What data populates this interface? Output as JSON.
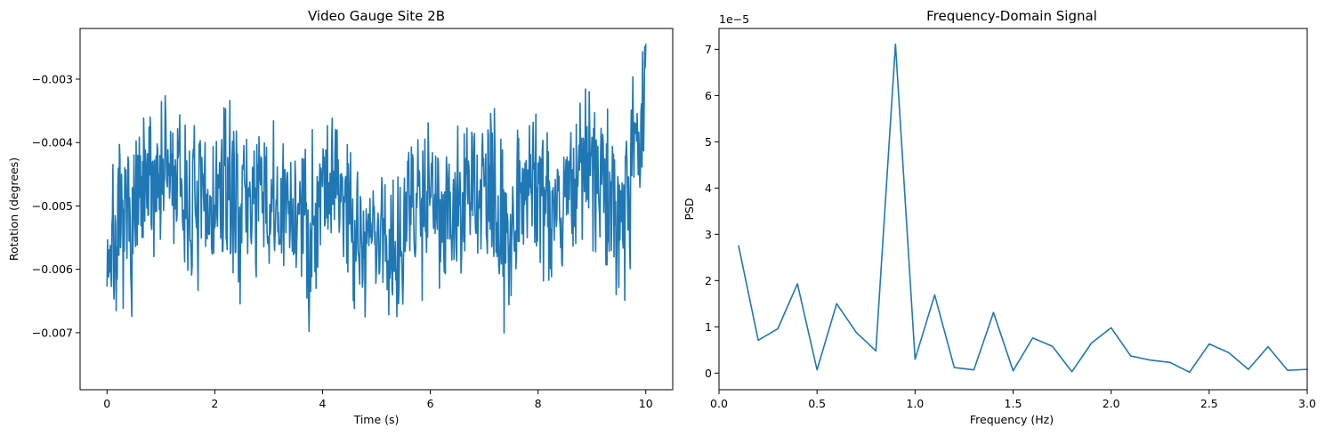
{
  "chart_data": [
    {
      "type": "line",
      "title": "Video Gauge Site 2B",
      "xlabel": "Time (s)",
      "ylabel": "Rotation (degrees)",
      "xlim": [
        -0.5,
        10.5
      ],
      "ylim": [
        -0.0079,
        -0.0022
      ],
      "xticks": [
        0,
        2,
        4,
        6,
        8,
        10
      ],
      "xtick_labels": [
        "0",
        "2",
        "4",
        "6",
        "8",
        "10"
      ],
      "yticks": [
        -0.007,
        -0.006,
        -0.005,
        -0.004,
        -0.003
      ],
      "ytick_labels": [
        "−0.007",
        "−0.006",
        "−0.005",
        "−0.004",
        "−0.003"
      ],
      "grid": false,
      "color": "#1f77b4",
      "series": [
        {
          "x": [
            0.0,
            0.25,
            0.5,
            0.75,
            1.0,
            1.25,
            1.5,
            1.75,
            2.0,
            2.25,
            2.5,
            2.75,
            3.0,
            3.25,
            3.5,
            3.75,
            4.0,
            4.25,
            4.5,
            4.75,
            5.0,
            5.25,
            5.5,
            5.75,
            6.0,
            6.25,
            6.5,
            6.75,
            7.0,
            7.25,
            7.5,
            7.75,
            8.0,
            8.25,
            8.5,
            8.75,
            9.0,
            9.25,
            9.5,
            9.75,
            10.0
          ],
          "y": [
            -0.0057,
            -0.0055,
            -0.0052,
            -0.0048,
            -0.0044,
            -0.0046,
            -0.005,
            -0.0051,
            -0.005,
            -0.0047,
            -0.005,
            -0.0048,
            -0.0051,
            -0.0052,
            -0.005,
            -0.0055,
            -0.0045,
            -0.0046,
            -0.005,
            -0.0056,
            -0.0054,
            -0.0057,
            -0.0053,
            -0.0049,
            -0.0046,
            -0.005,
            -0.0052,
            -0.0048,
            -0.0047,
            -0.0052,
            -0.0053,
            -0.0045,
            -0.0046,
            -0.005,
            -0.0049,
            -0.0044,
            -0.0044,
            -0.0048,
            -0.0052,
            -0.0041,
            -0.0036
          ],
          "min_value": -0.00765,
          "max_value": -0.00245
        }
      ]
    },
    {
      "type": "line",
      "title": "Frequency-Domain Signal",
      "xlabel": "Frequency (Hz)",
      "ylabel": "PSD",
      "offset_text": "1e−5",
      "xlim": [
        0.0,
        3.0
      ],
      "ylim": [
        -3.6e-06,
        7.45e-05
      ],
      "xticks": [
        0.0,
        0.5,
        1.0,
        1.5,
        2.0,
        2.5,
        3.0
      ],
      "xtick_labels": [
        "0.0",
        "0.5",
        "1.0",
        "1.5",
        "2.0",
        "2.5",
        "3.0"
      ],
      "yticks": [
        0,
        1e-05,
        2e-05,
        3e-05,
        4e-05,
        5e-05,
        6e-05,
        7e-05
      ],
      "ytick_labels": [
        "0",
        "1",
        "2",
        "3",
        "4",
        "5",
        "6",
        "7"
      ],
      "grid": false,
      "color": "#1f77b4",
      "series": [
        {
          "x": [
            0.1,
            0.2,
            0.3,
            0.4,
            0.5,
            0.6,
            0.7,
            0.8,
            0.9,
            1.0,
            1.1,
            1.2,
            1.3,
            1.4,
            1.5,
            1.6,
            1.7,
            1.8,
            1.9,
            2.0,
            2.1,
            2.2,
            2.3,
            2.4,
            2.5,
            2.6,
            2.7,
            2.8,
            2.9,
            3.0
          ],
          "y": [
            2.75e-05,
            7.1e-06,
            9.6e-06,
            1.93e-05,
            7e-07,
            1.5e-05,
            8.8e-06,
            4.8e-06,
            7.11e-05,
            3e-06,
            1.69e-05,
            1.2e-06,
            7e-07,
            1.31e-05,
            5e-07,
            7.6e-06,
            5.8e-06,
            3e-07,
            6.5e-06,
            9.8e-06,
            3.7e-06,
            2.8e-06,
            2.3e-06,
            2e-07,
            6.3e-06,
            4.4e-06,
            8e-07,
            5.7e-06,
            6e-07,
            8e-07
          ]
        }
      ]
    }
  ]
}
